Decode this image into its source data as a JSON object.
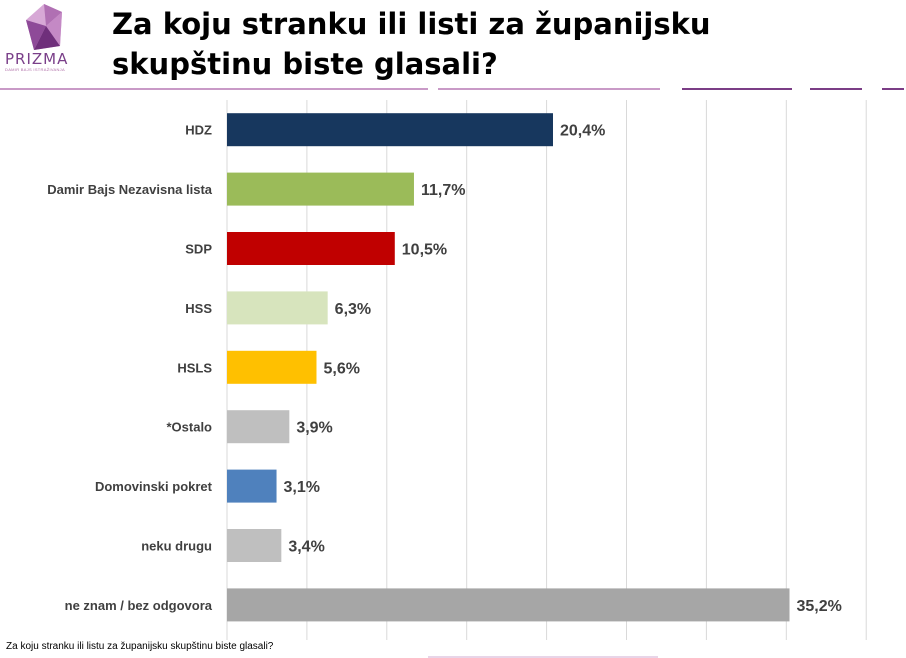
{
  "header": {
    "title": "Za koju stranku ili listi za županijsku skupštinu biste glasali?",
    "logo": {
      "name": "PRIZMA",
      "subtitle": "DAMIR BAJS ISTRAŽIVANJA",
      "icon": "prizma-logo-icon"
    }
  },
  "footnote": "Za koju stranku ili listu za županijsku skupštinu biste glasali?",
  "colors": {
    "accent_pink": "#c99ac7",
    "accent_purple": "#7b3d86",
    "gridline": "#d9d9d9"
  },
  "chart_data": {
    "type": "bar",
    "orientation": "horizontal",
    "categories": [
      "HDZ",
      "Damir Bajs Nezavisna lista",
      "SDP",
      "HSS",
      "HSLS",
      "*Ostalo",
      "Domovinski pokret",
      "neku drugu",
      "ne znam / bez odgovora"
    ],
    "values": [
      20.4,
      11.7,
      10.5,
      6.3,
      5.6,
      3.9,
      3.1,
      3.4,
      35.2
    ],
    "labels": [
      "20,4%",
      "11,7%",
      "10,5%",
      "6,3%",
      "5,6%",
      "3,9%",
      "3,1%",
      "3,4%",
      "35,2%"
    ],
    "colors": [
      "#17375e",
      "#9bbb59",
      "#c00000",
      "#d7e4bd",
      "#ffc000",
      "#bfbfbf",
      "#4f81bd",
      "#bfbfbf",
      "#a6a6a6"
    ],
    "xlim": [
      0,
      40
    ],
    "grid": true
  }
}
